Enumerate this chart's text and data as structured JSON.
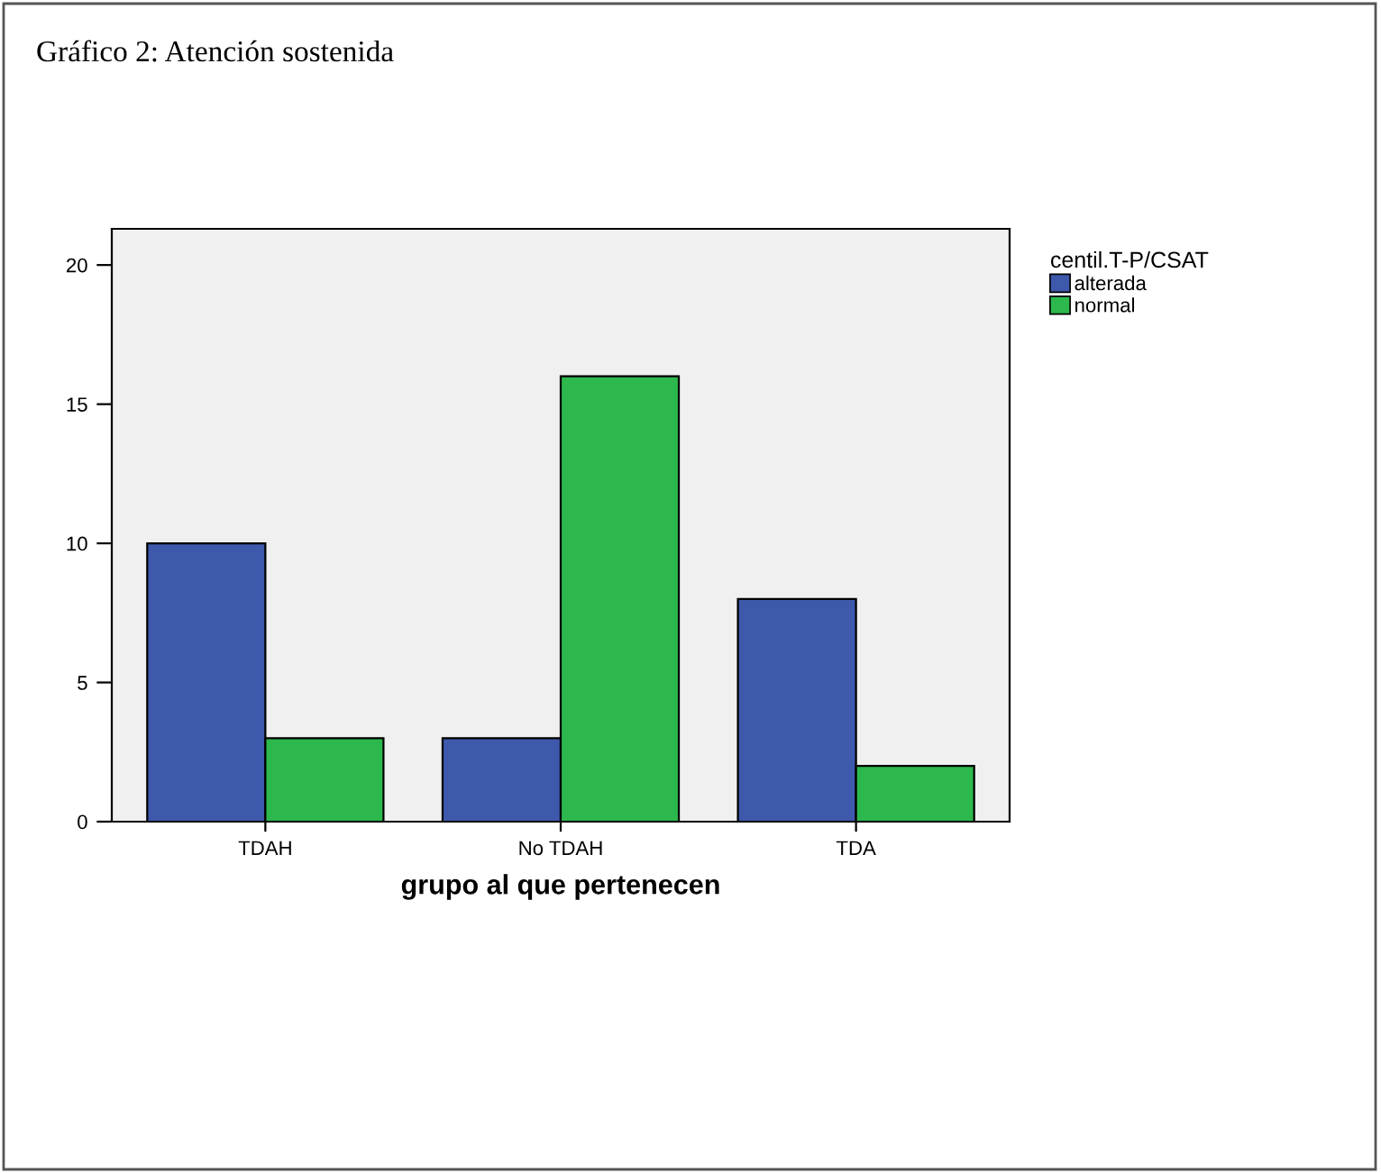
{
  "chart_data": {
    "type": "bar",
    "title": "Gráfico 2: Atención sostenida",
    "xlabel": "grupo al que pertenecen",
    "legend_title": "centil.T-P/CSAT",
    "categories": [
      "TDAH",
      "No TDAH",
      "TDA"
    ],
    "series": [
      {
        "name": "alterada",
        "color": "#3e58ac",
        "values": [
          10,
          3,
          8
        ]
      },
      {
        "name": "normal",
        "color": "#2db84d",
        "values": [
          3,
          16,
          2
        ]
      }
    ],
    "ylim": [
      0,
      21.3
    ],
    "yticks": [
      0,
      5,
      10,
      15,
      20
    ],
    "grid": false,
    "legend": "top right"
  }
}
